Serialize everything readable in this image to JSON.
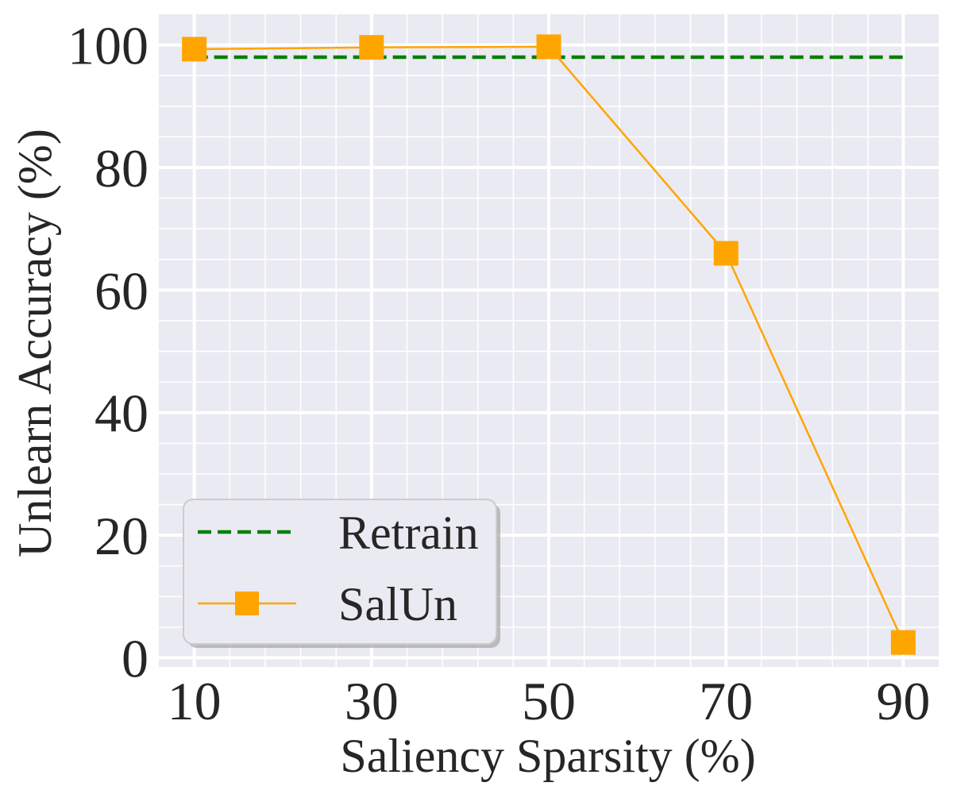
{
  "chart_data": {
    "type": "line",
    "xlabel": "Saliency Sparsity (%)",
    "ylabel": "Unlearn Accuracy (%)",
    "categories": [
      "10",
      "30",
      "50",
      "70",
      "90"
    ],
    "x": [
      10,
      30,
      50,
      70,
      90
    ],
    "xlim": [
      6,
      94
    ],
    "ylim": [
      -1.5,
      105
    ],
    "yticks": [
      0,
      20,
      40,
      60,
      80,
      100
    ],
    "grid": true,
    "legend_position": "bottom-left",
    "series": [
      {
        "name": "Retrain",
        "style": "dashed",
        "color": "#008000",
        "marker": "none",
        "x": [
          10,
          90
        ],
        "values": [
          98.0,
          98.0
        ]
      },
      {
        "name": "SalUn",
        "style": "solid",
        "color": "#FFA500",
        "marker": "square",
        "x": [
          10,
          30,
          50,
          70,
          90
        ],
        "values": [
          99.3,
          99.6,
          99.7,
          66.0,
          2.5
        ]
      }
    ],
    "colors": {
      "plot_background": "#EAEAF2",
      "grid": "#FFFFFF",
      "text": "#262626",
      "legend_background": "#EAEAF2",
      "legend_border": "#CCCCCC"
    }
  }
}
